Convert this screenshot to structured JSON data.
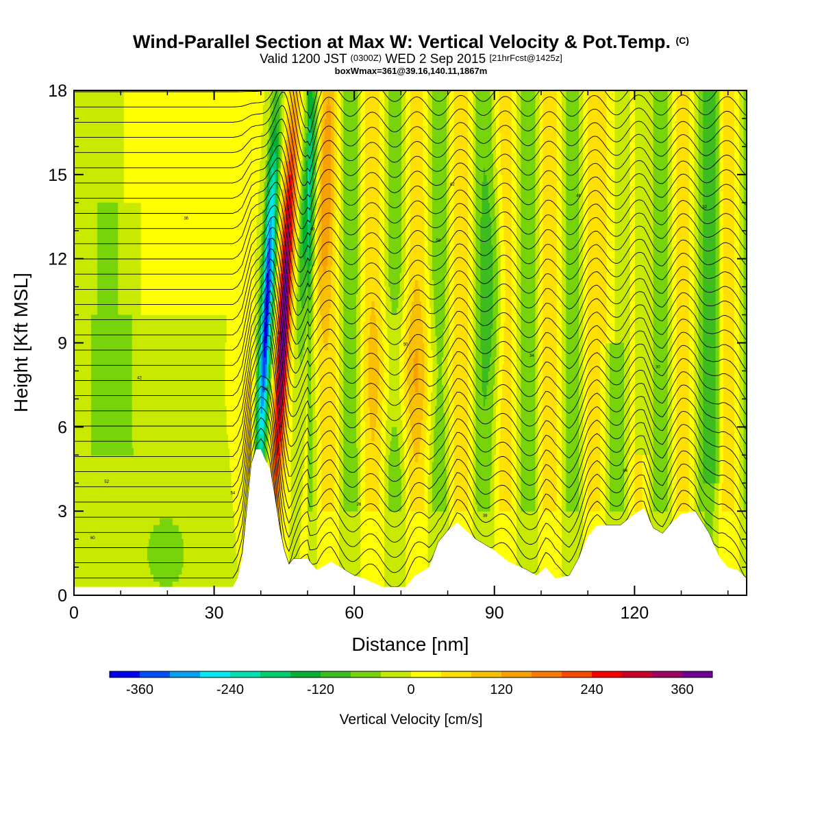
{
  "title": {
    "line1_main": "Wind-Parallel Section at Max W: Vertical Velocity & Pot.Temp.",
    "line1_mark": "(C)",
    "line2_a": "Valid 1200 JST",
    "line2_b": "(0300Z)",
    "line2_c": "WED 2 Sep 2015",
    "line2_d": "[21hrFcst@1425z]",
    "line3": "boxWmax=361@39.16,140.11,1867m"
  },
  "chart_data": {
    "type": "heatmap",
    "xlabel": "Distance [nm]",
    "ylabel": "Height [Kft MSL]",
    "xlim": [
      0,
      144
    ],
    "ylim": [
      0,
      18
    ],
    "x_ticks": [
      "0",
      "30",
      "60",
      "90",
      "120"
    ],
    "y_ticks": [
      "0",
      "3",
      "6",
      "9",
      "12",
      "15",
      "18"
    ],
    "colorbar": {
      "label": "Vertical Velocity [cm/s]",
      "tick_labels": [
        "-360",
        "-240",
        "-120",
        "0",
        "120",
        "240",
        "360"
      ],
      "levels": [
        -400,
        -360,
        -320,
        -280,
        -240,
        -200,
        -160,
        -120,
        -80,
        -40,
        0,
        40,
        80,
        120,
        160,
        200,
        240,
        280,
        320,
        360,
        400
      ],
      "colors": [
        "#0000f0",
        "#0050f5",
        "#00a0f5",
        "#00e8f0",
        "#00e0b0",
        "#00cc70",
        "#00b030",
        "#3cbc1e",
        "#78d40a",
        "#c8ea00",
        "#ffff00",
        "#ffe000",
        "#f8c000",
        "#f8a000",
        "#f87800",
        "#f84800",
        "#f80000",
        "#c8002c",
        "#a00060",
        "#6e0096"
      ]
    },
    "terrain_kft": [
      [
        0,
        0.3
      ],
      [
        34,
        0.3
      ],
      [
        35,
        0.6
      ],
      [
        36,
        1.3
      ],
      [
        37,
        3
      ],
      [
        38,
        4.7
      ],
      [
        39,
        5.2
      ],
      [
        40,
        5.2
      ],
      [
        41,
        4.8
      ],
      [
        42,
        4.5
      ],
      [
        43,
        3.5
      ],
      [
        44,
        2.4
      ],
      [
        45,
        1.6
      ],
      [
        46,
        1.1
      ],
      [
        47,
        1.3
      ],
      [
        50,
        1.3
      ],
      [
        52,
        0.9
      ],
      [
        55,
        1.2
      ],
      [
        58,
        0.9
      ],
      [
        60,
        0.7
      ],
      [
        62,
        0.6
      ],
      [
        66,
        0.3
      ],
      [
        71,
        0.3
      ],
      [
        73,
        0.7
      ],
      [
        76,
        1.0
      ],
      [
        78,
        1.9
      ],
      [
        80,
        2.3
      ],
      [
        82,
        2.6
      ],
      [
        84,
        2.3
      ],
      [
        86,
        2.0
      ],
      [
        88,
        1.8
      ],
      [
        90,
        1.6
      ],
      [
        93,
        1.2
      ],
      [
        97,
        0.9
      ],
      [
        99,
        0.7
      ],
      [
        101,
        1.0
      ],
      [
        103,
        0.6
      ],
      [
        106,
        0.7
      ],
      [
        108,
        1.3
      ],
      [
        110,
        2.1
      ],
      [
        112,
        2.5
      ],
      [
        117,
        2.5
      ],
      [
        120,
        2.9
      ],
      [
        122,
        3.1
      ],
      [
        124,
        2.4
      ],
      [
        126,
        2.2
      ],
      [
        128,
        2.6
      ],
      [
        130,
        2.9
      ],
      [
        133,
        3.0
      ],
      [
        136,
        2.2
      ],
      [
        138,
        1.4
      ],
      [
        140,
        1.0
      ],
      [
        142,
        0.9
      ],
      [
        144,
        0.6
      ]
    ],
    "contour_labels": [
      "60",
      "48",
      "58",
      "44",
      "42",
      "40",
      "38",
      "30",
      "36",
      "26",
      "34",
      "32",
      "54",
      "50",
      "46",
      "52",
      "56",
      "62",
      "64"
    ]
  }
}
